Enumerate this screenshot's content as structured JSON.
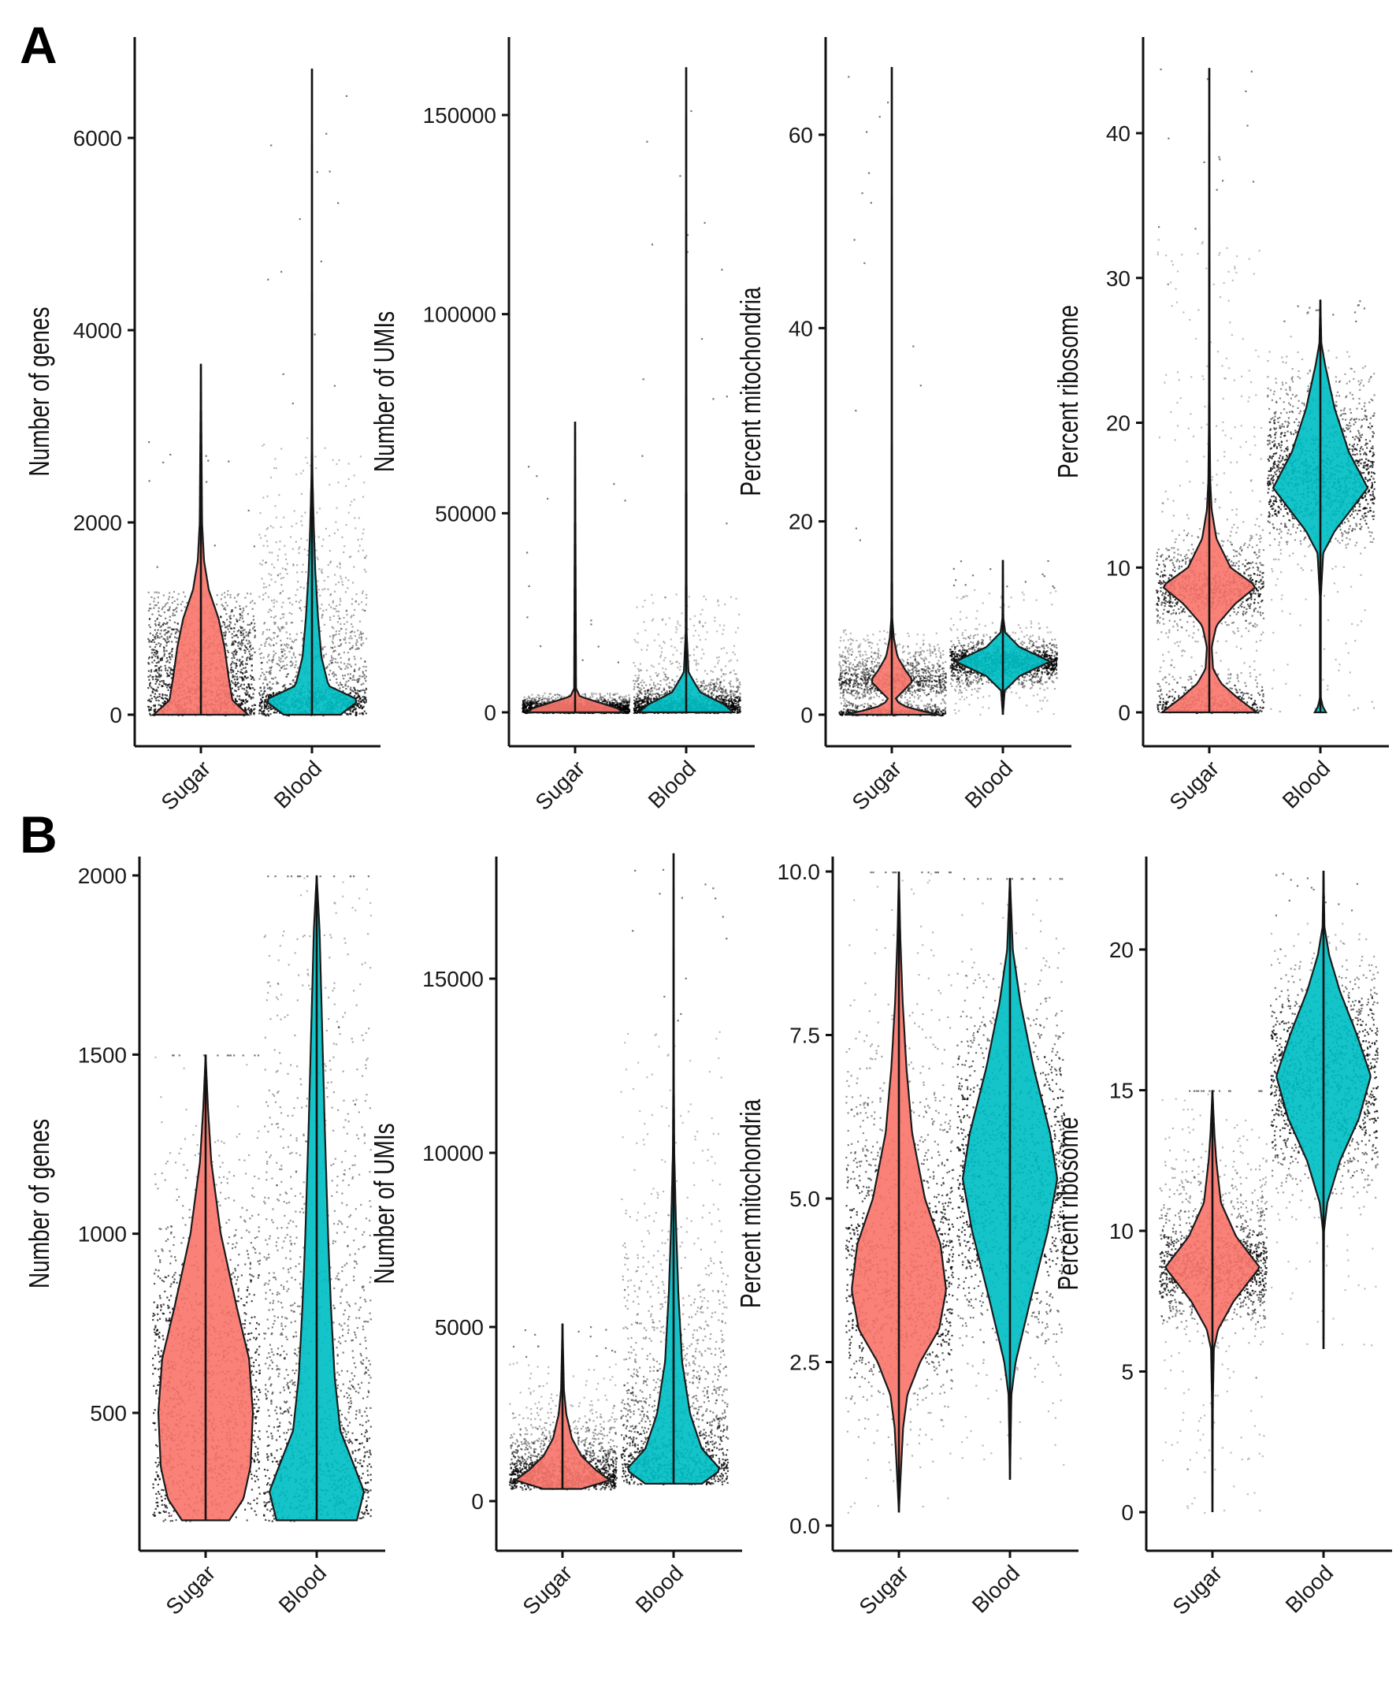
{
  "figure": {
    "panel_letters": [
      "A",
      "B"
    ],
    "colors": {
      "Sugar": "#F8766D",
      "Blood": "#00BFC4",
      "points": "#000000"
    }
  },
  "chart_data": [
    {
      "id": "A-genes",
      "row": "A",
      "type": "violin",
      "title": "",
      "xlabel": "",
      "ylabel": "Number of genes",
      "categories": [
        "Sugar",
        "Blood"
      ],
      "yticks": [
        0,
        2000,
        4000,
        6000
      ],
      "ytick_labels": [
        "0",
        "2000",
        "4000",
        "6000"
      ],
      "ylim": [
        -700,
        7050
      ],
      "grid": false,
      "legend": "none",
      "series": [
        {
          "name": "Sugar",
          "min": 0,
          "max": 3650,
          "point_max": 2950,
          "point_min": 0,
          "dense_max": 1300,
          "density": [
            [
              0,
              0.12
            ],
            [
              150,
              0.08
            ],
            [
              400,
              0.07
            ],
            [
              700,
              0.06
            ],
            [
              1000,
              0.045
            ],
            [
              1300,
              0.02
            ],
            [
              1600,
              0.008
            ],
            [
              2000,
              0.003
            ],
            [
              3650,
              0
            ]
          ]
        },
        {
          "name": "Blood",
          "min": 0,
          "max": 6720,
          "point_max": 6720,
          "point_min": 0,
          "dense_max": 2900,
          "density": [
            [
              0,
              0.6
            ],
            [
              150,
              1.0
            ],
            [
              300,
              0.35
            ],
            [
              600,
              0.2
            ],
            [
              1000,
              0.13
            ],
            [
              1500,
              0.07
            ],
            [
              2000,
              0.035
            ],
            [
              2500,
              0.01
            ],
            [
              3000,
              0.004
            ],
            [
              6720,
              0
            ]
          ]
        }
      ]
    },
    {
      "id": "A-umis",
      "row": "A",
      "type": "violin",
      "ylabel": "Number of UMIs",
      "categories": [
        "Sugar",
        "Blood"
      ],
      "yticks": [
        0,
        50000,
        100000,
        150000
      ],
      "ytick_labels": [
        "0",
        "50000",
        "100000",
        "150000"
      ],
      "ylim": [
        -17000,
        171000
      ],
      "grid": false,
      "legend": "none",
      "series": [
        {
          "name": "Sugar",
          "min": 0,
          "max": 73000,
          "point_max": 73000,
          "point_min": 0,
          "dense_max": 5000,
          "density": [
            [
              0,
              1.0
            ],
            [
              1000,
              0.9
            ],
            [
              2500,
              0.5
            ],
            [
              4000,
              0.1
            ],
            [
              6000,
              0.02
            ],
            [
              73000,
              0
            ]
          ]
        },
        {
          "name": "Blood",
          "min": 0,
          "max": 162000,
          "point_max": 162000,
          "point_min": 0,
          "dense_max": 30000,
          "density": [
            [
              0,
              1.0
            ],
            [
              2000,
              0.8
            ],
            [
              5000,
              0.3
            ],
            [
              10000,
              0.05
            ],
            [
              20000,
              0.01
            ],
            [
              162000,
              0
            ]
          ]
        }
      ]
    },
    {
      "id": "A-mito",
      "row": "A",
      "type": "violin",
      "ylabel": "Percent mitochondria",
      "categories": [
        "Sugar",
        "Blood"
      ],
      "yticks": [
        0,
        20,
        40,
        60
      ],
      "ytick_labels": [
        "0",
        "20",
        "40",
        "60"
      ],
      "ylim": [
        -7,
        71
      ],
      "grid": false,
      "legend": "none",
      "series": [
        {
          "name": "Sugar",
          "min": 0,
          "max": 67,
          "point_max": 67,
          "point_min": 0,
          "dense_max": 9,
          "density": [
            [
              0,
              1.0
            ],
            [
              0.7,
              0.35
            ],
            [
              1.5,
              0.05
            ],
            [
              2.5,
              0.25
            ],
            [
              3.5,
              0.45
            ],
            [
              4.5,
              0.3
            ],
            [
              6,
              0.12
            ],
            [
              8,
              0.04
            ],
            [
              10,
              0.01
            ],
            [
              20,
              0.003
            ],
            [
              67,
              0
            ]
          ]
        },
        {
          "name": "Blood",
          "min": 0,
          "max": 16,
          "point_max": 16,
          "point_min": 0,
          "dense_max": 13,
          "density": [
            [
              0,
              0
            ],
            [
              2.5,
              0.04
            ],
            [
              4,
              0.35
            ],
            [
              5.5,
              1.0
            ],
            [
              7,
              0.35
            ],
            [
              8.5,
              0.05
            ],
            [
              10,
              0.01
            ],
            [
              16,
              0
            ]
          ]
        }
      ]
    },
    {
      "id": "A-ribo",
      "row": "A",
      "type": "violin",
      "ylabel": "Percent ribosome",
      "categories": [
        "Sugar",
        "Blood"
      ],
      "yticks": [
        0,
        10,
        20,
        30,
        40
      ],
      "ytick_labels": [
        "0",
        "10",
        "20",
        "30",
        "40"
      ],
      "ylim": [
        -2,
        46
      ],
      "grid": false,
      "legend": "none",
      "series": [
        {
          "name": "Sugar",
          "min": 0,
          "max": 44.5,
          "point_max": 44.5,
          "point_min": 0,
          "dense_max": 33,
          "density": [
            [
              0,
              1.0
            ],
            [
              1,
              0.6
            ],
            [
              2,
              0.25
            ],
            [
              3,
              0.08
            ],
            [
              4.5,
              0.05
            ],
            [
              6,
              0.15
            ],
            [
              7.5,
              0.55
            ],
            [
              8.7,
              1.0
            ],
            [
              10,
              0.45
            ],
            [
              12,
              0.15
            ],
            [
              14,
              0.05
            ],
            [
              16,
              0.02
            ],
            [
              20,
              0.008
            ],
            [
              25,
              0.006
            ],
            [
              32,
              0.004
            ],
            [
              34,
              0.002
            ],
            [
              44.5,
              0
            ]
          ]
        },
        {
          "name": "Blood",
          "min": 0,
          "max": 28.5,
          "point_max": 28.5,
          "point_min": 0,
          "dense_max": 27,
          "density": [
            [
              0,
              0.12
            ],
            [
              0.4,
              0.05
            ],
            [
              1,
              0.01
            ],
            [
              8,
              0.01
            ],
            [
              11,
              0.06
            ],
            [
              12.5,
              0.3
            ],
            [
              15.5,
              1.0
            ],
            [
              18,
              0.6
            ],
            [
              21,
              0.3
            ],
            [
              24,
              0.1
            ],
            [
              25.5,
              0.02
            ],
            [
              28.5,
              0
            ]
          ]
        }
      ]
    },
    {
      "id": "B-genes",
      "row": "B",
      "type": "violin",
      "ylabel": "Number of genes",
      "categories": [
        "Sugar",
        "Blood"
      ],
      "yticks": [
        500,
        1000,
        1500,
        2000
      ],
      "ytick_labels": [
        "500",
        "1000",
        "1500",
        "2000"
      ],
      "ylim": [
        110,
        2050
      ],
      "grid": false,
      "legend": "none",
      "series": [
        {
          "name": "Sugar",
          "min": 200,
          "max": 1500,
          "point_max": 1500,
          "point_min": 200,
          "dense_max": 1500,
          "density": [
            [
              200,
              0.5
            ],
            [
              260,
              0.8
            ],
            [
              350,
              0.95
            ],
            [
              500,
              1.0
            ],
            [
              650,
              0.92
            ],
            [
              800,
              0.65
            ],
            [
              1000,
              0.32
            ],
            [
              1200,
              0.12
            ],
            [
              1350,
              0.05
            ],
            [
              1500,
              0
            ]
          ]
        },
        {
          "name": "Blood",
          "min": 200,
          "max": 2000,
          "point_max": 2000,
          "point_min": 200,
          "dense_max": 2000,
          "density": [
            [
              200,
              0.85
            ],
            [
              280,
              1.0
            ],
            [
              350,
              0.8
            ],
            [
              450,
              0.5
            ],
            [
              600,
              0.38
            ],
            [
              800,
              0.3
            ],
            [
              1000,
              0.24
            ],
            [
              1300,
              0.17
            ],
            [
              1600,
              0.11
            ],
            [
              1850,
              0.06
            ],
            [
              2000,
              0
            ]
          ]
        }
      ]
    },
    {
      "id": "B-umis",
      "row": "B",
      "type": "violin",
      "ylabel": "Number of UMIs",
      "categories": [
        "Sugar",
        "Blood"
      ],
      "yticks": [
        0,
        5000,
        10000,
        15000
      ],
      "ytick_labels": [
        "0",
        "5000",
        "10000",
        "15000"
      ],
      "ylim": [
        -800,
        18900
      ],
      "grid": false,
      "legend": "none",
      "series": [
        {
          "name": "Sugar",
          "min": 350,
          "max": 5100,
          "point_max": 5100,
          "point_min": 350,
          "dense_max": 4000,
          "density": [
            [
              350,
              0.4
            ],
            [
              600,
              1.0
            ],
            [
              900,
              0.7
            ],
            [
              1300,
              0.4
            ],
            [
              1800,
              0.2
            ],
            [
              2500,
              0.08
            ],
            [
              3200,
              0.03
            ],
            [
              5100,
              0
            ]
          ]
        },
        {
          "name": "Blood",
          "min": 500,
          "max": 18600,
          "point_max": 18600,
          "point_min": 500,
          "dense_max": 13500,
          "density": [
            [
              500,
              0.6
            ],
            [
              900,
              1.0
            ],
            [
              1500,
              0.6
            ],
            [
              2500,
              0.35
            ],
            [
              4000,
              0.18
            ],
            [
              6000,
              0.1
            ],
            [
              8000,
              0.05
            ],
            [
              10000,
              0.015
            ],
            [
              12000,
              0.006
            ],
            [
              18600,
              0
            ]
          ]
        }
      ]
    },
    {
      "id": "B-mito",
      "row": "B",
      "type": "violin",
      "ylabel": "Percent mitochondria",
      "categories": [
        "Sugar",
        "Blood"
      ],
      "yticks": [
        0.0,
        2.5,
        5.0,
        7.5,
        10.0
      ],
      "ytick_labels": [
        "0.0",
        "2.5",
        "5.0",
        "7.5",
        "10.0"
      ],
      "ylim": [
        -0.35,
        10.4
      ],
      "grid": false,
      "legend": "none",
      "series": [
        {
          "name": "Sugar",
          "min": 0.2,
          "max": 10.0,
          "point_max": 10.0,
          "point_min": 0.2,
          "dense_max": 10.0,
          "density": [
            [
              0.2,
              0
            ],
            [
              0.8,
              0.04
            ],
            [
              1.5,
              0.09
            ],
            [
              2.0,
              0.18
            ],
            [
              2.5,
              0.45
            ],
            [
              3.0,
              0.85
            ],
            [
              3.6,
              1.0
            ],
            [
              4.3,
              0.88
            ],
            [
              5.0,
              0.55
            ],
            [
              6.0,
              0.28
            ],
            [
              7.0,
              0.16
            ],
            [
              8.0,
              0.08
            ],
            [
              9.0,
              0.03
            ],
            [
              10.0,
              0
            ]
          ]
        },
        {
          "name": "Blood",
          "min": 0.7,
          "max": 9.9,
          "point_max": 9.9,
          "point_min": 0.7,
          "dense_max": 9.9,
          "density": [
            [
              0.7,
              0
            ],
            [
              2.0,
              0.03
            ],
            [
              2.5,
              0.12
            ],
            [
              3.5,
              0.45
            ],
            [
              4.5,
              0.8
            ],
            [
              5.3,
              1.0
            ],
            [
              6.0,
              0.85
            ],
            [
              7.0,
              0.5
            ],
            [
              8.0,
              0.22
            ],
            [
              8.8,
              0.06
            ],
            [
              9.9,
              0
            ]
          ]
        }
      ]
    },
    {
      "id": "B-ribo",
      "row": "B",
      "type": "violin",
      "ylabel": "Percent ribosome",
      "categories": [
        "Sugar",
        "Blood"
      ],
      "yticks": [
        0,
        5,
        10,
        15,
        20
      ],
      "ytick_labels": [
        "0",
        "5",
        "10",
        "15",
        "20"
      ],
      "ylim": [
        -1.1,
        23.6
      ],
      "grid": false,
      "legend": "none",
      "series": [
        {
          "name": "Sugar",
          "min": 0,
          "max": 15,
          "point_max": 15,
          "point_min": 0,
          "dense_max": 15,
          "density": [
            [
              0,
              0
            ],
            [
              4,
              0.01
            ],
            [
              5.8,
              0.03
            ],
            [
              6.5,
              0.12
            ],
            [
              7.5,
              0.45
            ],
            [
              8.7,
              1.0
            ],
            [
              9.8,
              0.5
            ],
            [
              11,
              0.18
            ],
            [
              12.5,
              0.08
            ],
            [
              13.5,
              0.04
            ],
            [
              15,
              0
            ]
          ]
        },
        {
          "name": "Blood",
          "min": 5.8,
          "max": 22.8,
          "point_max": 22.8,
          "point_min": 5.8,
          "dense_max": 21,
          "density": [
            [
              5.8,
              0
            ],
            [
              10,
              0.01
            ],
            [
              11,
              0.08
            ],
            [
              12.5,
              0.35
            ],
            [
              14,
              0.75
            ],
            [
              15.5,
              1.0
            ],
            [
              17,
              0.7
            ],
            [
              18.5,
              0.35
            ],
            [
              19.8,
              0.12
            ],
            [
              20.8,
              0.02
            ],
            [
              22.8,
              0
            ]
          ]
        }
      ]
    }
  ]
}
